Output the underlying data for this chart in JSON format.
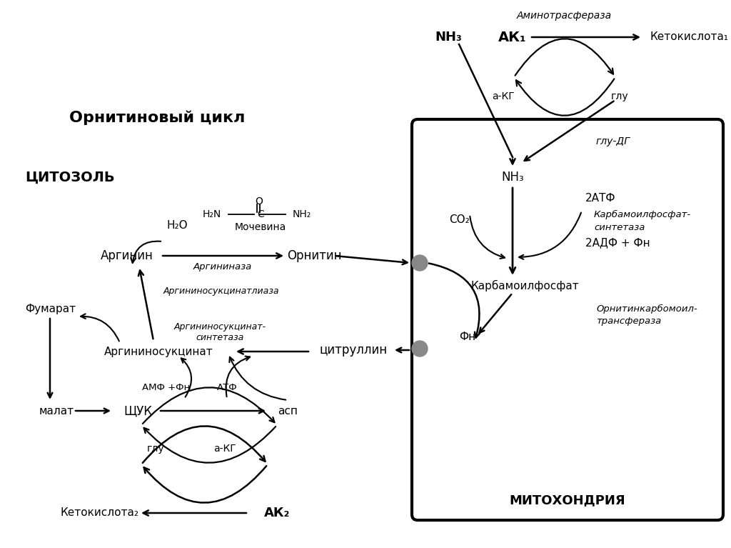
{
  "bg_color": "#ffffff",
  "title": "Орнитиновый цикл",
  "cytosol_label": "ЦИТОЗОЛЬ",
  "mito_label": "МИТОХОНДРИЯ",
  "fig_width": 10.24,
  "fig_height": 7.67
}
